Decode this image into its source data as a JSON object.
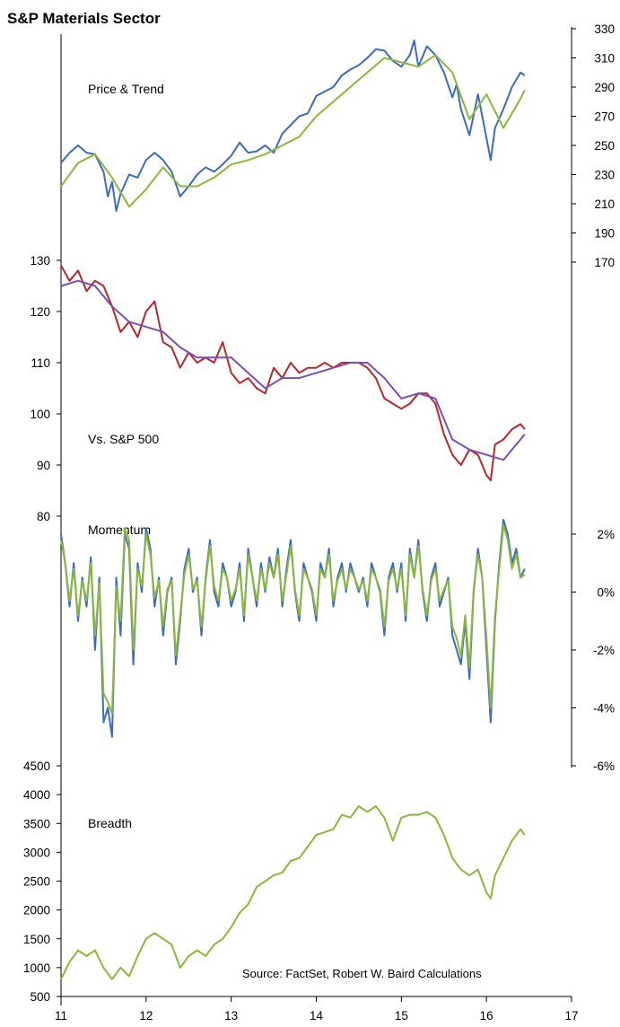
{
  "title": "S&P Materials Sector",
  "source": "Source: FactSet, Robert W. Baird Calculations",
  "colors": {
    "blue": "#3b6bbf",
    "green": "#8cb83a",
    "red": "#b8262b",
    "purple": "#7a4fb0"
  },
  "x_ticks": [
    "11",
    "12",
    "13",
    "14",
    "15",
    "16",
    "17"
  ],
  "chart_data": [
    {
      "type": "line",
      "label": "Price & Trend",
      "right_ticks": [
        "330",
        "310",
        "290",
        "270",
        "250",
        "230",
        "210",
        "190",
        "170"
      ],
      "ylim": [
        170,
        330
      ],
      "series": [
        {
          "color": "blue",
          "x": [
            11.0,
            11.1,
            11.2,
            11.3,
            11.4,
            11.5,
            11.55,
            11.6,
            11.65,
            11.7,
            11.8,
            11.9,
            12.0,
            12.1,
            12.2,
            12.3,
            12.4,
            12.5,
            12.6,
            12.7,
            12.8,
            12.9,
            13.0,
            13.1,
            13.2,
            13.3,
            13.4,
            13.5,
            13.6,
            13.7,
            13.8,
            13.9,
            14.0,
            14.1,
            14.2,
            14.3,
            14.4,
            14.5,
            14.6,
            14.7,
            14.8,
            14.9,
            15.0,
            15.1,
            15.15,
            15.2,
            15.3,
            15.4,
            15.5,
            15.6,
            15.65,
            15.7,
            15.8,
            15.9,
            16.0,
            16.05,
            16.1,
            16.2,
            16.3,
            16.4,
            16.45
          ],
          "values": [
            238,
            245,
            250,
            245,
            244,
            232,
            215,
            225,
            205,
            217,
            230,
            228,
            240,
            245,
            240,
            232,
            215,
            222,
            230,
            235,
            232,
            237,
            243,
            252,
            245,
            246,
            250,
            245,
            258,
            264,
            270,
            272,
            284,
            287,
            290,
            298,
            302,
            305,
            310,
            316,
            315,
            308,
            304,
            312,
            322,
            304,
            318,
            312,
            300,
            283,
            292,
            275,
            257,
            285,
            255,
            240,
            262,
            275,
            290,
            300,
            298
          ]
        },
        {
          "color": "green",
          "x": [
            11.0,
            11.2,
            11.4,
            11.6,
            11.8,
            12.0,
            12.2,
            12.4,
            12.6,
            12.8,
            13.0,
            13.2,
            13.4,
            13.6,
            13.8,
            14.0,
            14.2,
            14.4,
            14.6,
            14.8,
            15.0,
            15.2,
            15.4,
            15.6,
            15.8,
            16.0,
            16.2,
            16.4,
            16.45
          ],
          "values": [
            222,
            238,
            244,
            228,
            208,
            220,
            235,
            222,
            222,
            228,
            237,
            240,
            244,
            250,
            256,
            270,
            280,
            290,
            300,
            310,
            307,
            304,
            312,
            300,
            268,
            285,
            262,
            282,
            288
          ]
        }
      ]
    },
    {
      "type": "line",
      "label": "Vs. S&P 500",
      "left_ticks": [
        "130",
        "120",
        "110",
        "100",
        "90",
        "80"
      ],
      "ylim": [
        80,
        130
      ],
      "series": [
        {
          "color": "red",
          "x": [
            11.0,
            11.1,
            11.2,
            11.3,
            11.4,
            11.5,
            11.6,
            11.7,
            11.8,
            11.9,
            12.0,
            12.1,
            12.2,
            12.3,
            12.4,
            12.5,
            12.6,
            12.7,
            12.8,
            12.9,
            13.0,
            13.1,
            13.2,
            13.3,
            13.4,
            13.5,
            13.6,
            13.7,
            13.8,
            13.9,
            14.0,
            14.1,
            14.2,
            14.3,
            14.4,
            14.5,
            14.6,
            14.7,
            14.8,
            14.9,
            15.0,
            15.1,
            15.2,
            15.3,
            15.4,
            15.5,
            15.6,
            15.7,
            15.8,
            15.9,
            16.0,
            16.05,
            16.1,
            16.2,
            16.3,
            16.4,
            16.45
          ],
          "values": [
            129,
            126,
            128,
            124,
            126,
            125,
            121,
            116,
            118,
            115,
            120,
            122,
            114,
            113,
            109,
            112,
            110,
            111,
            110,
            114,
            108,
            106,
            107,
            105,
            104,
            109,
            107,
            110,
            108,
            109,
            109,
            110,
            109,
            110,
            110,
            110,
            109,
            107,
            103,
            102,
            101,
            102,
            104,
            104,
            102,
            96,
            92,
            90,
            93,
            92,
            88,
            87,
            94,
            95,
            97,
            98,
            97
          ]
        },
        {
          "color": "purple",
          "x": [
            11.0,
            11.2,
            11.4,
            11.6,
            11.8,
            12.0,
            12.2,
            12.4,
            12.6,
            12.8,
            13.0,
            13.2,
            13.4,
            13.6,
            13.8,
            14.0,
            14.2,
            14.4,
            14.6,
            14.8,
            15.0,
            15.2,
            15.4,
            15.6,
            15.8,
            16.0,
            16.2,
            16.4,
            16.45
          ],
          "values": [
            125,
            126,
            125,
            121,
            118,
            117,
            116,
            113,
            111,
            111,
            111,
            108,
            105,
            107,
            107,
            108,
            109,
            110,
            110,
            107,
            103,
            104,
            103,
            95,
            93,
            92,
            91,
            95,
            96
          ]
        }
      ]
    },
    {
      "type": "line",
      "label": "Momentum",
      "right_ticks": [
        "2%",
        "0%",
        "-2%",
        "-4%",
        "-6%"
      ],
      "ylim": [
        -6,
        2
      ],
      "series": [
        {
          "color": "blue",
          "x": [
            11.0,
            11.05,
            11.1,
            11.15,
            11.2,
            11.25,
            11.3,
            11.35,
            11.4,
            11.45,
            11.5,
            11.55,
            11.6,
            11.65,
            11.7,
            11.75,
            11.8,
            11.85,
            11.9,
            11.95,
            12.0,
            12.05,
            12.1,
            12.15,
            12.2,
            12.25,
            12.3,
            12.35,
            12.4,
            12.45,
            12.5,
            12.55,
            12.6,
            12.65,
            12.7,
            12.75,
            12.8,
            12.85,
            12.9,
            12.95,
            13.0,
            13.05,
            13.1,
            13.15,
            13.2,
            13.25,
            13.3,
            13.35,
            13.4,
            13.45,
            13.5,
            13.55,
            13.6,
            13.65,
            13.7,
            13.75,
            13.8,
            13.85,
            13.9,
            13.95,
            14.0,
            14.05,
            14.1,
            14.15,
            14.2,
            14.25,
            14.3,
            14.35,
            14.4,
            14.45,
            14.5,
            14.55,
            14.6,
            14.65,
            14.7,
            14.75,
            14.8,
            14.85,
            14.9,
            14.95,
            15.0,
            15.05,
            15.1,
            15.15,
            15.2,
            15.25,
            15.3,
            15.35,
            15.4,
            15.45,
            15.5,
            15.55,
            15.6,
            15.65,
            15.7,
            15.75,
            15.8,
            15.85,
            15.9,
            15.95,
            16.0,
            16.05,
            16.1,
            16.15,
            16.2,
            16.25,
            16.3,
            16.35,
            16.4,
            16.45
          ],
          "values": [
            2.0,
            1.0,
            -0.5,
            1.0,
            -1.0,
            0.5,
            -0.5,
            1.2,
            -2.0,
            0.5,
            -4.5,
            -4.0,
            -5.0,
            0.5,
            -1.5,
            2.0,
            1.5,
            -2.5,
            1.0,
            0.0,
            2.2,
            1.5,
            -0.5,
            0.5,
            -1.5,
            0.0,
            0.5,
            -2.5,
            -1.0,
            0.8,
            1.5,
            0.0,
            0.5,
            -1.5,
            0.5,
            1.8,
            0.0,
            -0.5,
            1.0,
            0.5,
            -0.5,
            0.0,
            1.0,
            -1.0,
            1.5,
            0.5,
            -0.5,
            1.0,
            0.0,
            1.2,
            0.5,
            1.5,
            -0.5,
            0.8,
            1.8,
            0.0,
            -1.0,
            1.0,
            0.5,
            0.0,
            -1.0,
            1.0,
            0.5,
            1.5,
            -0.5,
            0.5,
            1.0,
            0.0,
            1.0,
            0.5,
            0.0,
            0.5,
            -0.5,
            1.0,
            0.5,
            0.0,
            -1.5,
            0.5,
            1.0,
            0.0,
            1.0,
            -1.0,
            1.5,
            0.5,
            1.8,
            0.0,
            -1.0,
            0.5,
            1.0,
            -0.5,
            0.0,
            0.5,
            -1.5,
            -2.0,
            -2.5,
            -1.0,
            -3.0,
            0.0,
            1.5,
            0.5,
            -2.0,
            -4.5,
            -1.0,
            1.0,
            2.5,
            2.0,
            1.0,
            1.5,
            0.5,
            0.8
          ]
        },
        {
          "color": "green",
          "x": [
            11.0,
            11.05,
            11.1,
            11.15,
            11.2,
            11.25,
            11.3,
            11.35,
            11.4,
            11.45,
            11.5,
            11.55,
            11.6,
            11.65,
            11.7,
            11.75,
            11.8,
            11.85,
            11.9,
            11.95,
            12.0,
            12.05,
            12.1,
            12.15,
            12.2,
            12.25,
            12.3,
            12.35,
            12.4,
            12.45,
            12.5,
            12.55,
            12.6,
            12.65,
            12.7,
            12.75,
            12.8,
            12.85,
            12.9,
            12.95,
            13.0,
            13.05,
            13.1,
            13.15,
            13.2,
            13.25,
            13.3,
            13.35,
            13.4,
            13.45,
            13.5,
            13.55,
            13.6,
            13.65,
            13.7,
            13.75,
            13.8,
            13.85,
            13.9,
            13.95,
            14.0,
            14.05,
            14.1,
            14.15,
            14.2,
            14.25,
            14.3,
            14.35,
            14.4,
            14.45,
            14.5,
            14.55,
            14.6,
            14.65,
            14.7,
            14.75,
            14.8,
            14.85,
            14.9,
            14.95,
            15.0,
            15.05,
            15.1,
            15.15,
            15.2,
            15.25,
            15.3,
            15.35,
            15.4,
            15.45,
            15.5,
            15.55,
            15.6,
            15.65,
            15.7,
            15.75,
            15.8,
            15.85,
            15.9,
            15.95,
            16.0,
            16.05,
            16.1,
            16.15,
            16.2,
            16.25,
            16.3,
            16.35,
            16.4,
            16.45
          ],
          "values": [
            1.8,
            1.0,
            -0.3,
            0.8,
            -0.8,
            0.4,
            -0.3,
            1.0,
            -1.5,
            0.3,
            -3.5,
            -3.8,
            -4.2,
            0.2,
            -1.0,
            2.2,
            1.8,
            -2.0,
            0.8,
            0.2,
            2.0,
            1.3,
            -0.2,
            0.4,
            -1.2,
            0.1,
            0.4,
            -2.2,
            -0.8,
            0.6,
            1.3,
            0.1,
            0.4,
            -1.2,
            0.4,
            1.6,
            0.2,
            -0.3,
            0.8,
            0.5,
            -0.3,
            0.1,
            0.8,
            -0.8,
            1.3,
            0.5,
            -0.3,
            0.8,
            0.1,
            1.0,
            0.5,
            1.3,
            -0.3,
            0.6,
            1.6,
            0.1,
            -0.8,
            0.8,
            0.5,
            0.1,
            -0.8,
            0.8,
            0.5,
            1.3,
            -0.3,
            0.4,
            0.8,
            0.1,
            0.8,
            0.5,
            0.1,
            0.4,
            -0.3,
            0.8,
            0.5,
            0.1,
            -1.2,
            0.4,
            0.8,
            0.1,
            0.8,
            -0.8,
            1.3,
            0.5,
            1.6,
            0.1,
            -0.8,
            0.4,
            0.8,
            -0.3,
            0.1,
            0.4,
            -1.2,
            -1.6,
            -2.2,
            -0.8,
            -2.6,
            0.1,
            1.3,
            0.5,
            -1.6,
            -4.0,
            -0.8,
            0.8,
            2.3,
            1.8,
            0.8,
            1.3,
            0.5,
            0.6
          ]
        }
      ]
    },
    {
      "type": "line",
      "label": "Breadth",
      "left_ticks": [
        "4500",
        "4000",
        "3500",
        "3000",
        "2500",
        "2000",
        "1500",
        "1000",
        "500"
      ],
      "ylim": [
        500,
        4500
      ],
      "series": [
        {
          "color": "green",
          "x": [
            11.0,
            11.1,
            11.2,
            11.3,
            11.4,
            11.5,
            11.6,
            11.7,
            11.8,
            11.9,
            12.0,
            12.1,
            12.2,
            12.3,
            12.4,
            12.5,
            12.6,
            12.7,
            12.8,
            12.9,
            13.0,
            13.1,
            13.2,
            13.3,
            13.4,
            13.5,
            13.6,
            13.7,
            13.8,
            13.9,
            14.0,
            14.1,
            14.2,
            14.3,
            14.4,
            14.5,
            14.6,
            14.7,
            14.8,
            14.9,
            15.0,
            15.1,
            15.2,
            15.3,
            15.4,
            15.5,
            15.6,
            15.7,
            15.8,
            15.9,
            16.0,
            16.05,
            16.1,
            16.2,
            16.3,
            16.4,
            16.45
          ],
          "values": [
            800,
            1100,
            1300,
            1200,
            1300,
            1000,
            800,
            1000,
            850,
            1200,
            1500,
            1600,
            1500,
            1400,
            1000,
            1200,
            1300,
            1200,
            1400,
            1500,
            1700,
            1950,
            2100,
            2400,
            2500,
            2600,
            2650,
            2850,
            2900,
            3100,
            3300,
            3350,
            3400,
            3650,
            3600,
            3800,
            3700,
            3800,
            3600,
            3200,
            3600,
            3650,
            3650,
            3700,
            3600,
            3300,
            2900,
            2700,
            2600,
            2700,
            2300,
            2200,
            2600,
            2900,
            3200,
            3400,
            3300
          ]
        }
      ]
    }
  ]
}
